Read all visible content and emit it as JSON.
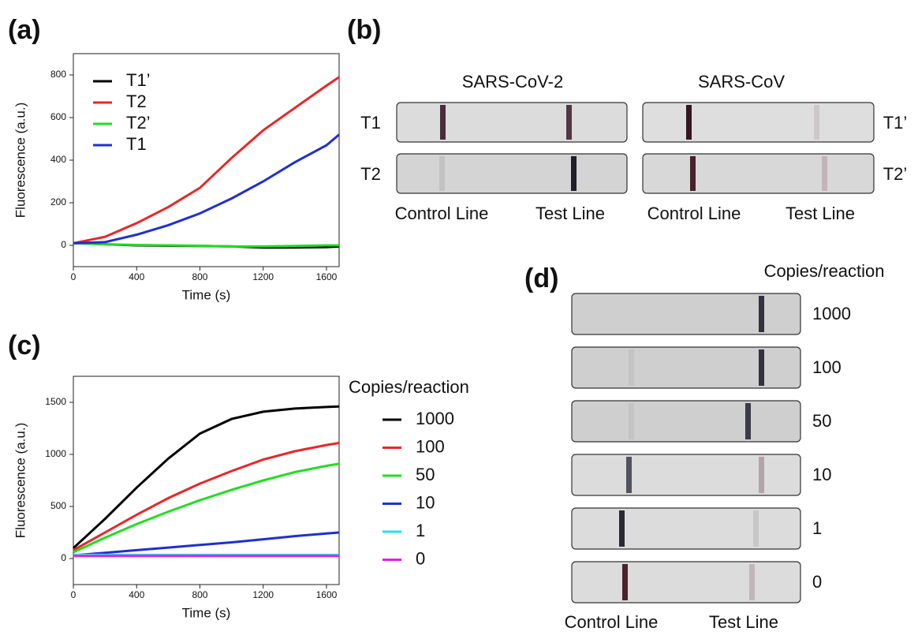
{
  "chart_data": [
    {
      "type": "line",
      "x_label": "Time (s)",
      "y_label": "Fluorescence (a.u.)",
      "x": [
        0,
        200,
        400,
        600,
        800,
        1000,
        1200,
        1400,
        1600,
        1680
      ],
      "series": [
        {
          "name": "T1’",
          "color": "#000000",
          "values": [
            10,
            5,
            0,
            -2,
            -3,
            -5,
            -10,
            -10,
            -8,
            -5
          ]
        },
        {
          "name": "T2",
          "color": "#e8262a",
          "values": [
            10,
            40,
            104,
            180,
            270,
            410,
            540,
            645,
            750,
            790
          ]
        },
        {
          "name": "T2’",
          "color": "#22dd22",
          "values": [
            10,
            5,
            2,
            0,
            -2,
            -5,
            -5,
            -3,
            0,
            0
          ]
        },
        {
          "name": "T1",
          "color": "#1f2fd0",
          "values": [
            10,
            15,
            50,
            95,
            150,
            220,
            300,
            390,
            470,
            520
          ]
        }
      ],
      "xlim": [
        0,
        1680
      ],
      "xticks": [
        0,
        400,
        800,
        1200,
        1600
      ],
      "ylim": [
        -100,
        900
      ],
      "yticks": [
        0,
        200,
        400,
        600,
        800
      ],
      "legend": "upper-left"
    },
    {
      "type": "line",
      "x_label": "Time (s)",
      "y_label": "Fluorescence (a.u.)",
      "legend_title": "Copies/reaction",
      "x": [
        0,
        200,
        400,
        600,
        800,
        1000,
        1200,
        1400,
        1600,
        1680
      ],
      "series": [
        {
          "name": "1000",
          "color": "#000000",
          "values": [
            100,
            380,
            680,
            960,
            1200,
            1340,
            1410,
            1440,
            1455,
            1460
          ]
        },
        {
          "name": "100",
          "color": "#e8262a",
          "values": [
            80,
            250,
            420,
            580,
            720,
            840,
            950,
            1030,
            1090,
            1110
          ]
        },
        {
          "name": "50",
          "color": "#22dd22",
          "values": [
            60,
            200,
            330,
            450,
            560,
            660,
            750,
            830,
            890,
            910
          ]
        },
        {
          "name": "10",
          "color": "#1f2fd0",
          "values": [
            30,
            55,
            80,
            105,
            130,
            155,
            185,
            215,
            240,
            250
          ]
        },
        {
          "name": "1",
          "color": "#22e0e8",
          "values": [
            35,
            35,
            35,
            35,
            35,
            35,
            35,
            35,
            35,
            35
          ]
        },
        {
          "name": "0",
          "color": "#e020e0",
          "values": [
            25,
            25,
            25,
            25,
            25,
            25,
            25,
            25,
            25,
            25
          ]
        }
      ],
      "xlim": [
        0,
        1680
      ],
      "xticks": [
        0,
        400,
        800,
        1200,
        1600
      ],
      "ylim": [
        -250,
        1750
      ],
      "yticks": [
        0,
        500,
        1000,
        1500
      ],
      "legend": "outside-right"
    }
  ],
  "panel_labels": [
    "(a)",
    "(b)",
    "(c)",
    "(d)"
  ],
  "panel_b": {
    "columns": [
      "SARS-CoV-2",
      "SARS-CoV"
    ],
    "left_labels": [
      "T1",
      "T2"
    ],
    "right_labels": [
      "T1’",
      "T2’"
    ],
    "bottom_labels": [
      "Control Line",
      "Test Line",
      "Control Line",
      "Test Line"
    ]
  },
  "panel_d": {
    "header": "Copies/reaction",
    "labels": [
      "1000",
      "100",
      "50",
      "10",
      "1",
      "0"
    ],
    "bottom_labels": [
      "Control Line",
      "Test Line"
    ]
  }
}
